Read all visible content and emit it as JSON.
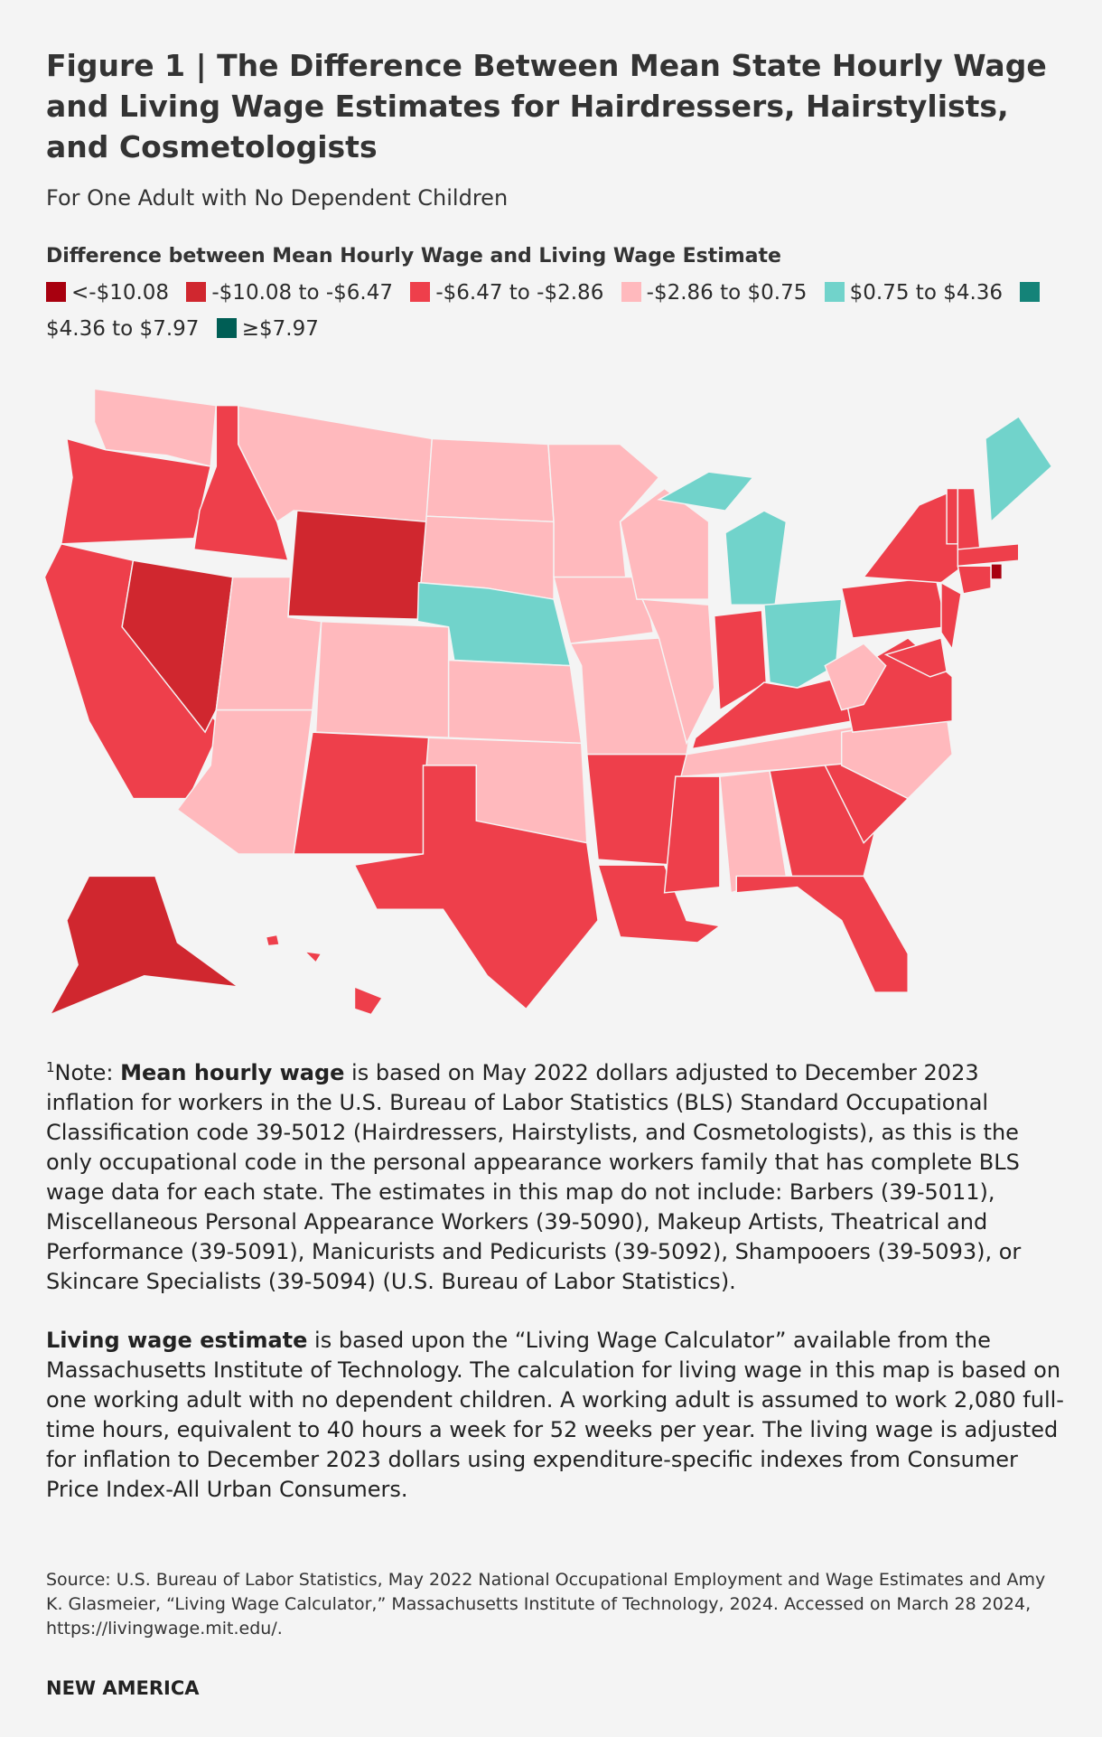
{
  "header": {
    "title": "Figure 1 | The Difference Between Mean State Hourly Wage and Living Wage Estimates for Hairdressers, Hairstylists, and Cosmetologists",
    "subtitle": "For One Adult with No Dependent Children"
  },
  "legend": {
    "title": "Difference between Mean Hourly Wage and Living Wage Estimate",
    "items": [
      {
        "label": "<-$10.08",
        "color": "#a8000f"
      },
      {
        "label": "-$10.08 to -$6.47",
        "color": "#d0272f"
      },
      {
        "label": "-$6.47 to -$2.86",
        "color": "#ee3f4b"
      },
      {
        "label": "-$2.86 to $0.75",
        "color": "#ffb9bd"
      },
      {
        "label": "$0.75 to $4.36",
        "color": "#71d3cb"
      },
      {
        "label": "$4.36 to $7.97",
        "color": "#148378"
      },
      {
        "label": "≥$7.97",
        "color": "#005e55"
      }
    ]
  },
  "notes": [
    {
      "marker": "1",
      "lead": "Note: ",
      "bold": "Mean hourly wage",
      "text": " is based on May 2022 dollars adjusted to December 2023 inflation for workers in the U.S. Bureau of Labor Statistics (BLS) Standard Occupational Classification code 39-5012 (Hairdressers, Hairstylists, and Cosmetologists), as this is the only occupational code in the personal appearance workers family that has complete BLS wage data for each state. The estimates in this map do not include: Barbers (39-5011), Miscellaneous Personal Appearance Workers (39-5090), Makeup Artists, Theatrical and Performance (39-5091), Manicurists and Pedicurists (39-5092), Shampooers (39-5093), or Skincare Specialists (39-5094) (U.S. Bureau of Labor Statistics)."
    },
    {
      "bold": "Living wage estimate",
      "text": " is based upon the “Living Wage Calculator” available from the Massachusetts Institute of Technology. The calculation for living wage in this map is based on one working adult with no dependent children. A working adult is assumed to work 2,080 full-time hours, equivalent to 40 hours a week for 52 weeks per year. The living wage is adjusted for inflation to December 2023 dollars using expenditure-specific indexes from Consumer Price Index-All Urban Consumers."
    }
  ],
  "source": "Source: U.S. Bureau of Labor Statistics, May 2022 National Occupational Employment and Wage Estimates and Amy K. Glasmeier, “Living Wage Calculator,” Massachusetts Institute of Technology, 2024. Accessed on March 28 2024, https://livingwage.mit.edu/.",
  "brand": "NEW AMERICA"
}
